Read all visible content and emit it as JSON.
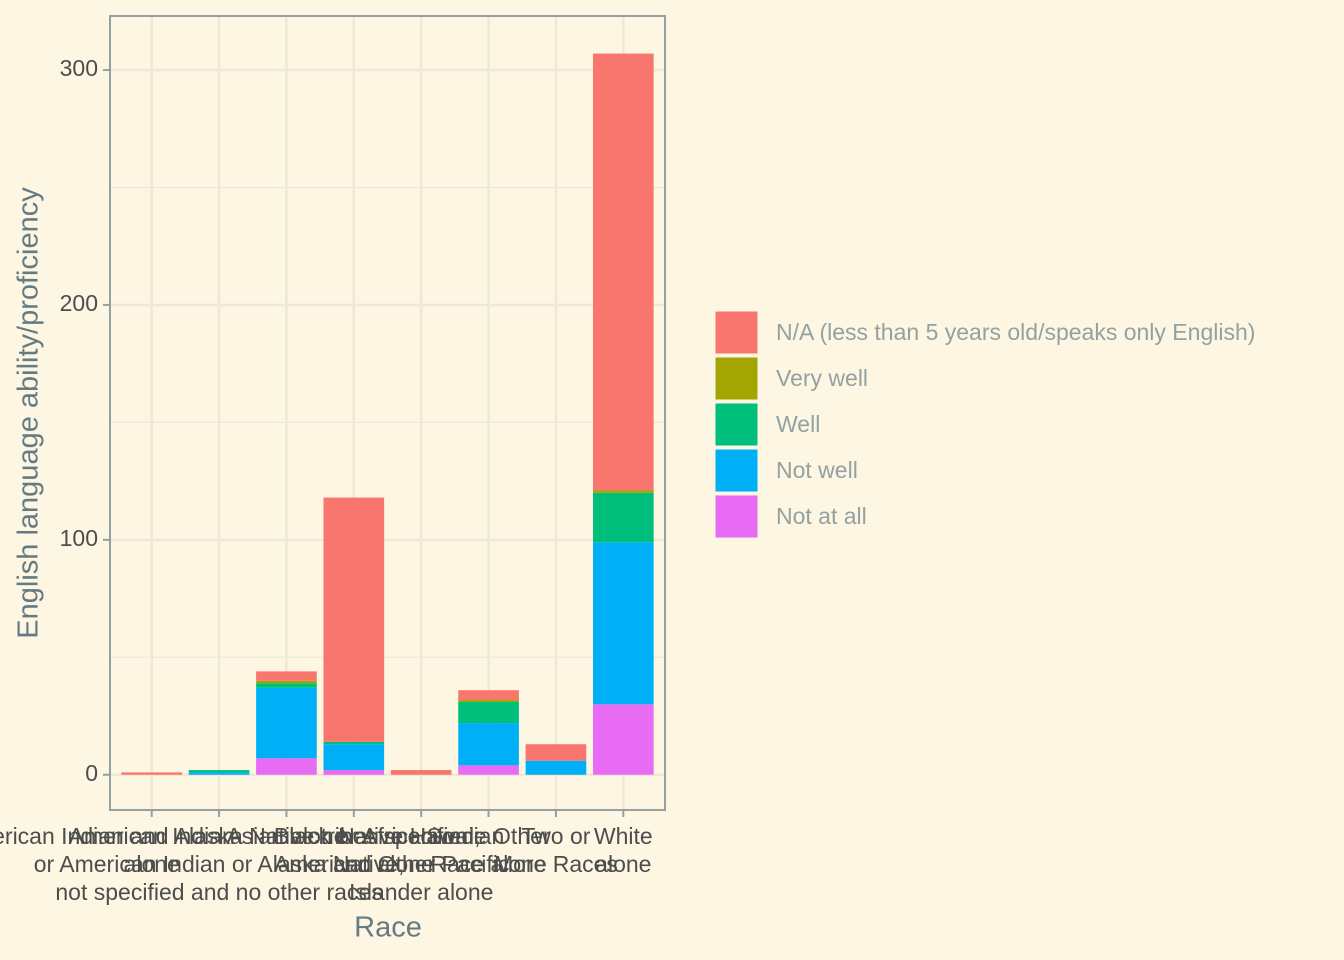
{
  "chart_data": {
    "type": "bar",
    "stacked": true,
    "x_label": "Race",
    "y_label": "English language ability/proficiency",
    "categories": [
      "American Indian\nalone",
      "American Indian and Alaska Native tribes specified;\nor American Indian or Alaska Native,\nnot specified and no other races",
      "Asian alone",
      "Black or African\nAmerican alone",
      "Native Hawaiian\nand Other Pacific\nIslander alone",
      "Some Other\nRace alone",
      "Two or\nMore Races",
      "White\nalone"
    ],
    "series": [
      {
        "name": "N/A (less than 5 years old/speaks only English)",
        "color": "#F8766D",
        "values": [
          1,
          0,
          4,
          104,
          2,
          4,
          7,
          186
        ]
      },
      {
        "name": "Very well",
        "color": "#A3A500",
        "values": [
          0,
          0,
          1,
          0,
          0,
          1,
          0,
          1
        ]
      },
      {
        "name": "Well",
        "color": "#00BF7D",
        "values": [
          0,
          1,
          2,
          1,
          0,
          9,
          0,
          21
        ]
      },
      {
        "name": "Not well",
        "color": "#00B0F6",
        "values": [
          0,
          1,
          30,
          11,
          0,
          18,
          6,
          69
        ]
      },
      {
        "name": "Not at all",
        "color": "#E76BF3",
        "values": [
          0,
          0,
          7,
          2,
          0,
          4,
          0,
          30
        ]
      }
    ],
    "ylim": [
      -15,
      323
    ],
    "yticks": [
      0,
      100,
      200,
      300
    ],
    "minor_yticks": [
      50,
      150,
      250
    ],
    "grid": true,
    "legend": "right"
  }
}
